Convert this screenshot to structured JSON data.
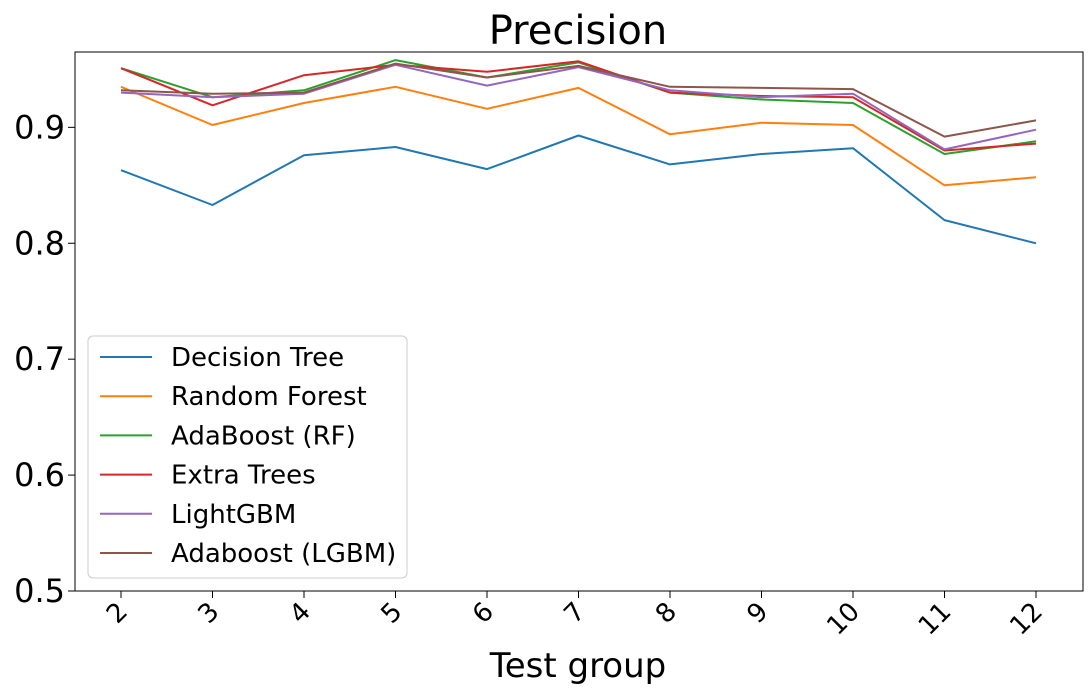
{
  "chart_data": {
    "type": "line",
    "title": "Precision",
    "xlabel": "Test group",
    "ylabel": "",
    "categories": [
      "2",
      "3",
      "4",
      "5",
      "6",
      "7",
      "8",
      "9",
      "10",
      "11",
      "12"
    ],
    "yticks": [
      "0.5",
      "0.6",
      "0.7",
      "0.8",
      "0.9"
    ],
    "ylim": [
      0.5,
      0.965
    ],
    "grid": false,
    "legend_position": "bottom-left",
    "series": [
      {
        "name": "Decision Tree",
        "color": "#1f77b4",
        "values": [
          0.863,
          0.833,
          0.876,
          0.883,
          0.864,
          0.893,
          0.868,
          0.877,
          0.882,
          0.82,
          0.8
        ]
      },
      {
        "name": "Random Forest",
        "color": "#ff7f0e",
        "values": [
          0.935,
          0.902,
          0.921,
          0.935,
          0.916,
          0.934,
          0.894,
          0.904,
          0.902,
          0.85,
          0.857
        ]
      },
      {
        "name": "AdaBoost (RF)",
        "color": "#2ca02c",
        "values": [
          0.951,
          0.926,
          0.932,
          0.958,
          0.943,
          0.956,
          0.93,
          0.924,
          0.921,
          0.877,
          0.888
        ]
      },
      {
        "name": "Extra Trees",
        "color": "#d62728",
        "values": [
          0.951,
          0.919,
          0.945,
          0.954,
          0.948,
          0.957,
          0.93,
          0.927,
          0.926,
          0.88,
          0.886
        ]
      },
      {
        "name": "LightGBM",
        "color": "#9467bd",
        "values": [
          0.93,
          0.926,
          0.929,
          0.954,
          0.936,
          0.952,
          0.932,
          0.926,
          0.929,
          0.881,
          0.898
        ]
      },
      {
        "name": "Adaboost (LGBM)",
        "color": "#8c564b",
        "values": [
          0.932,
          0.929,
          0.93,
          0.955,
          0.943,
          0.953,
          0.935,
          0.934,
          0.933,
          0.892,
          0.906
        ]
      }
    ]
  }
}
